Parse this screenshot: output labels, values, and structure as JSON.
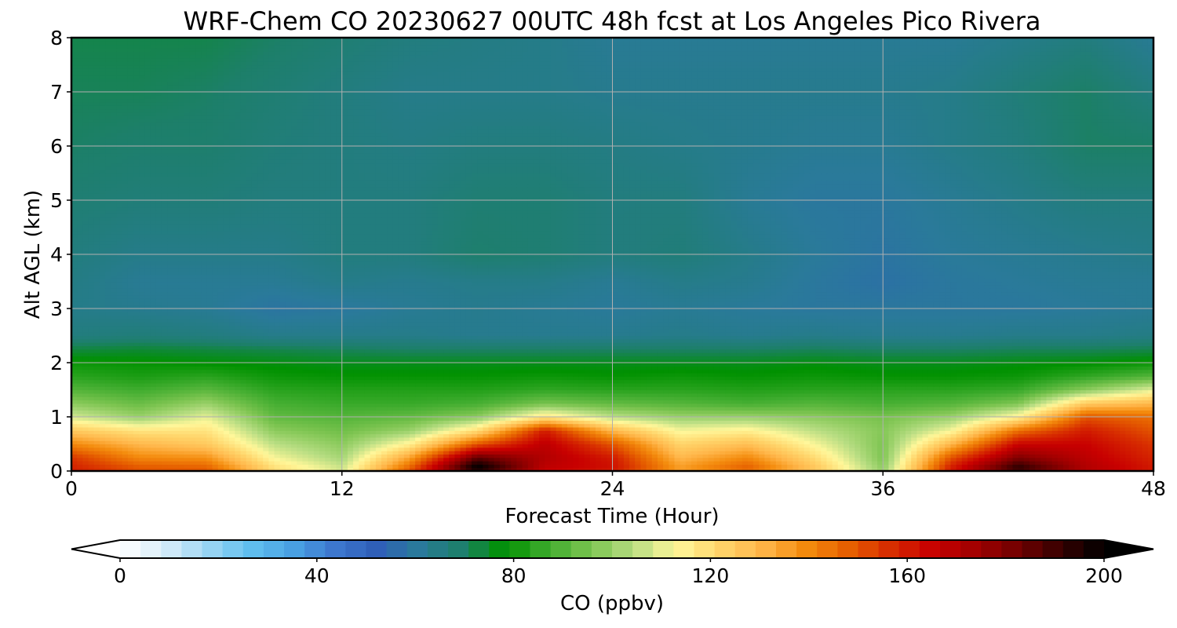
{
  "chart_data": {
    "type": "heatmap",
    "title": "WRF-Chem CO  20230627 00UTC 48h fcst at Los Angeles Pico Rivera",
    "xlabel": "Forecast Time (Hour)",
    "ylabel": "Alt AGL (km)",
    "xlim": [
      0,
      48
    ],
    "ylim": [
      0,
      8
    ],
    "xticks": [
      "0",
      "12",
      "24",
      "36",
      "48"
    ],
    "yticks": [
      "0",
      "1",
      "2",
      "3",
      "4",
      "5",
      "6",
      "7",
      "8"
    ],
    "grid": true,
    "colorbar": {
      "label": "CO  (ppbv)",
      "range": [
        0,
        200
      ],
      "extend": "both",
      "ticks": [
        "0",
        "40",
        "80",
        "120",
        "160",
        "200"
      ],
      "colors": [
        "#ffffff",
        "#d9eefa",
        "#9fd6f4",
        "#62c0ef",
        "#4aa3e3",
        "#3d78cf",
        "#2f5fb8",
        "#2a7a9a",
        "#1d7f6a",
        "#009100",
        "#3fac2e",
        "#7cc450",
        "#b7dd82",
        "#fff79a",
        "#ffd56b",
        "#ffb64a",
        "#f48c0e",
        "#e66000",
        "#d72c00",
        "#c80000",
        "#a00000",
        "#700000",
        "#350000",
        "#000000"
      ]
    },
    "x": [
      0,
      3,
      6,
      9,
      12,
      15,
      18,
      21,
      24,
      27,
      30,
      33,
      36,
      39,
      42,
      45,
      48
    ],
    "y": [
      0,
      0.1,
      0.25,
      0.5,
      0.75,
      1.0,
      1.25,
      1.5,
      1.75,
      2.0,
      2.25,
      2.5,
      3.0,
      3.5,
      4.0,
      5.0,
      6.0,
      7.0,
      8.0
    ],
    "values": [
      [
        160,
        150,
        150,
        120,
        108,
        150,
        195,
        165,
        160,
        135,
        145,
        125,
        100,
        160,
        190,
        170,
        160
      ],
      [
        158,
        148,
        146,
        118,
        106,
        145,
        200,
        168,
        162,
        135,
        147,
        125,
        98,
        158,
        192,
        170,
        160
      ],
      [
        155,
        140,
        138,
        112,
        102,
        135,
        185,
        170,
        160,
        130,
        140,
        120,
        96,
        150,
        180,
        168,
        158
      ],
      [
        140,
        130,
        125,
        105,
        98,
        115,
        150,
        168,
        150,
        122,
        128,
        112,
        96,
        130,
        165,
        165,
        155
      ],
      [
        125,
        118,
        118,
        98,
        94,
        100,
        120,
        160,
        130,
        112,
        115,
        105,
        97,
        112,
        145,
        160,
        150
      ],
      [
        108,
        100,
        110,
        92,
        90,
        92,
        98,
        118,
        105,
        100,
        100,
        98,
        95,
        100,
        115,
        150,
        145
      ],
      [
        98,
        93,
        100,
        88,
        86,
        86,
        88,
        95,
        92,
        90,
        88,
        90,
        88,
        90,
        96,
        125,
        130
      ],
      [
        90,
        87,
        91,
        84,
        83,
        83,
        83,
        85,
        84,
        84,
        83,
        84,
        84,
        84,
        86,
        98,
        110
      ],
      [
        84,
        82,
        84,
        80,
        79,
        79,
        79,
        80,
        79,
        80,
        79,
        80,
        79,
        79,
        80,
        85,
        90
      ],
      [
        80,
        79,
        78,
        77,
        76,
        76,
        76,
        76,
        76,
        76,
        76,
        77,
        76,
        76,
        77,
        78,
        80
      ],
      [
        73,
        74,
        73,
        72,
        71,
        70,
        70,
        70,
        70,
        70,
        70,
        71,
        70,
        70,
        71,
        71,
        72
      ],
      [
        66,
        67,
        66,
        64,
        64,
        64,
        63,
        63,
        63,
        64,
        63,
        64,
        63,
        63,
        64,
        64,
        65
      ],
      [
        64,
        63,
        62,
        59,
        60,
        62,
        63,
        62,
        61,
        62,
        61,
        60,
        60,
        60,
        60,
        61,
        62
      ],
      [
        65,
        62,
        62,
        62,
        64,
        63,
        64,
        64,
        62,
        64,
        63,
        60,
        58,
        60,
        61,
        62,
        62
      ],
      [
        66,
        64,
        64,
        64,
        66,
        66,
        69,
        68,
        66,
        67,
        64,
        61,
        59,
        61,
        62,
        63,
        64
      ],
      [
        68,
        67,
        67,
        66,
        66,
        66,
        68,
        68,
        66,
        66,
        62,
        60,
        60,
        62,
        64,
        66,
        66
      ],
      [
        70,
        69,
        69,
        67,
        66,
        65,
        66,
        66,
        65,
        64,
        63,
        62,
        62,
        64,
        66,
        70,
        70
      ],
      [
        71,
        71,
        70,
        68,
        66,
        64,
        64,
        64,
        63,
        63,
        63,
        63,
        63,
        64,
        67,
        70,
        66
      ],
      [
        72,
        72,
        72,
        70,
        68,
        66,
        65,
        64,
        62,
        62,
        62,
        62,
        62,
        62,
        64,
        66,
        62
      ]
    ]
  }
}
